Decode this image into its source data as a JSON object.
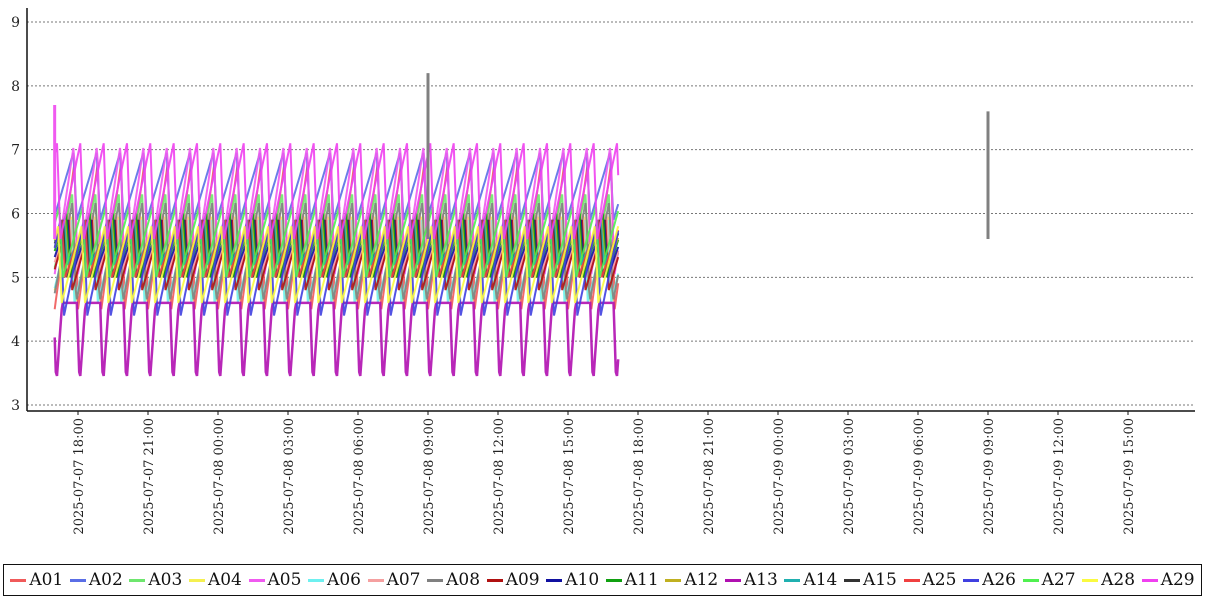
{
  "chart_data": {
    "type": "line",
    "title": "",
    "xlabel": "",
    "ylabel": "",
    "ylim": [
      3,
      9
    ],
    "y_ticks": [
      "3",
      "4",
      "5",
      "6",
      "7",
      "8",
      "9"
    ],
    "grid": "horizontal dotted",
    "legend_position": "bottom",
    "x_ticks": [
      "2025-07-07  18:00",
      "2025-07-07  21:00",
      "2025-07-08  00:00",
      "2025-07-08  03:00",
      "2025-07-08  06:00",
      "2025-07-08  09:00",
      "2025-07-08  12:00",
      "2025-07-08  15:00",
      "2025-07-08  18:00",
      "2025-07-08  21:00",
      "2025-07-09  00:00",
      "2025-07-09  03:00",
      "2025-07-09  06:00",
      "2025-07-09  09:00",
      "2025-07-09  12:00",
      "2025-07-09  15:00"
    ],
    "time_range_hours": {
      "start": -0.6,
      "end": 24.6
    },
    "description": "Sawtooth oscillation, period about 1 hour; values from the start of 2025-07-07 17:00 onward",
    "series": [
      {
        "name": "A01",
        "color": "#f05a5a",
        "low": 4.5,
        "high": 6.8,
        "phase": 0.0,
        "shape": "saw"
      },
      {
        "name": "A02",
        "color": "#5a6ee6",
        "low": 5.9,
        "high": 6.95,
        "phase": 0.05,
        "shape": "saw"
      },
      {
        "name": "A03",
        "color": "#6ee66e",
        "low": 5.0,
        "high": 6.3,
        "phase": 0.1,
        "shape": "saw"
      },
      {
        "name": "A04",
        "color": "#f5f050",
        "low": 4.6,
        "high": 6.0,
        "phase": 0.12,
        "shape": "saw"
      },
      {
        "name": "A05",
        "color": "#f05af0",
        "low": 5.0,
        "high": 7.1,
        "phase": 0.02,
        "shape": "saw"
      },
      {
        "name": "A06",
        "color": "#6ef0f0",
        "low": 4.6,
        "high": 5.9,
        "phase": 0.15,
        "shape": "saw"
      },
      {
        "name": "A07",
        "color": "#f5a0a0",
        "low": 5.0,
        "high": 6.0,
        "phase": 0.2,
        "shape": "saw"
      },
      {
        "name": "A08",
        "color": "#808080",
        "low": 4.6,
        "high": 6.2,
        "phase": 0.08,
        "shape": "saw"
      },
      {
        "name": "A09",
        "color": "#b01010",
        "low": 4.8,
        "high": 5.9,
        "phase": 0.25,
        "shape": "saw"
      },
      {
        "name": "A10",
        "color": "#1010a0",
        "low": 5.0,
        "high": 5.9,
        "phase": 0.3,
        "shape": "saw"
      },
      {
        "name": "A11",
        "color": "#10a010",
        "low": 5.0,
        "high": 6.0,
        "phase": 0.35,
        "shape": "saw"
      },
      {
        "name": "A12",
        "color": "#c0b020",
        "low": 5.1,
        "high": 5.9,
        "phase": 0.4,
        "shape": "saw"
      },
      {
        "name": "A13",
        "color": "#b010b0",
        "low": 3.3,
        "high": 4.6,
        "phase": 0.05,
        "shape": "drop"
      },
      {
        "name": "A14",
        "color": "#20b0b0",
        "low": 5.2,
        "high": 5.9,
        "phase": 0.45,
        "shape": "saw"
      },
      {
        "name": "A15",
        "color": "#333333",
        "low": 5.0,
        "high": 5.9,
        "phase": 0.5,
        "shape": "saw"
      },
      {
        "name": "A25",
        "color": "#f04040",
        "low": 5.0,
        "high": 5.9,
        "phase": 0.55,
        "shape": "saw"
      },
      {
        "name": "A26",
        "color": "#4040e0",
        "low": 4.4,
        "high": 5.9,
        "phase": 0.6,
        "shape": "saw"
      },
      {
        "name": "A27",
        "color": "#50f050",
        "low": 5.0,
        "high": 6.1,
        "phase": 0.65,
        "shape": "saw"
      },
      {
        "name": "A28",
        "color": "#fafa40",
        "low": 4.6,
        "high": 5.8,
        "phase": 0.7,
        "shape": "saw"
      },
      {
        "name": "A29",
        "color": "#f040f0",
        "low": 5.6,
        "high": 7.1,
        "phase": 0.75,
        "shape": "saw"
      }
    ],
    "annotations": [
      {
        "note": "spike",
        "series": "A08",
        "value": 8.2,
        "time": "2025-07-08 09:00"
      },
      {
        "note": "spike",
        "series": "A08",
        "value": 7.6,
        "time": "2025-07-09 09:00"
      },
      {
        "note": "peak",
        "series": "A05",
        "value": 7.7,
        "time": "2025-07-07 17:00"
      }
    ]
  }
}
